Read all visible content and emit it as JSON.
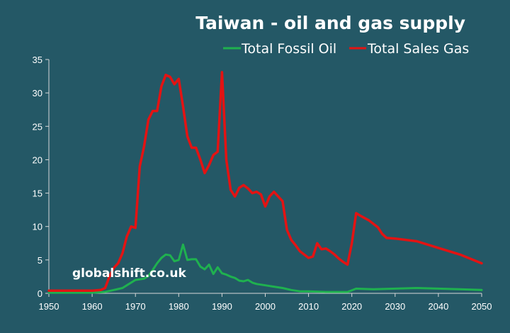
{
  "chart_data": {
    "type": "line",
    "title": "Taiwan - oil and gas supply",
    "watermark": "globalshift.co.uk",
    "xlim": [
      1950,
      2050
    ],
    "ylim": [
      0,
      35
    ],
    "x_ticks": [
      1950,
      1960,
      1970,
      1980,
      1990,
      2000,
      2010,
      2020,
      2030,
      2040,
      2050
    ],
    "y_ticks": [
      0,
      5,
      10,
      15,
      20,
      25,
      30,
      35
    ],
    "grid": false,
    "legend_position": "top-right",
    "background_color": "#245866",
    "series": [
      {
        "name": "Total Fossil Oil",
        "color": "#1fb14f",
        "points": [
          [
            1950,
            0.1
          ],
          [
            1955,
            0.1
          ],
          [
            1960,
            0.1
          ],
          [
            1963,
            0.2
          ],
          [
            1965,
            0.5
          ],
          [
            1967,
            0.8
          ],
          [
            1968,
            1.2
          ],
          [
            1970,
            2.0
          ],
          [
            1972,
            2.2
          ],
          [
            1973,
            2.6
          ],
          [
            1974,
            3.5
          ],
          [
            1975,
            4.5
          ],
          [
            1976,
            5.3
          ],
          [
            1977,
            5.8
          ],
          [
            1978,
            5.7
          ],
          [
            1979,
            4.8
          ],
          [
            1980,
            5.0
          ],
          [
            1981,
            7.3
          ],
          [
            1982,
            5.0
          ],
          [
            1983,
            5.1
          ],
          [
            1984,
            5.1
          ],
          [
            1985,
            4.0
          ],
          [
            1986,
            3.6
          ],
          [
            1987,
            4.3
          ],
          [
            1988,
            2.9
          ],
          [
            1989,
            3.9
          ],
          [
            1990,
            3.0
          ],
          [
            1991,
            2.8
          ],
          [
            1992,
            2.5
          ],
          [
            1993,
            2.3
          ],
          [
            1994,
            1.9
          ],
          [
            1995,
            1.8
          ],
          [
            1996,
            2.0
          ],
          [
            1997,
            1.6
          ],
          [
            1998,
            1.4
          ],
          [
            2000,
            1.2
          ],
          [
            2002,
            1.0
          ],
          [
            2004,
            0.8
          ],
          [
            2006,
            0.5
          ],
          [
            2008,
            0.3
          ],
          [
            2010,
            0.3
          ],
          [
            2014,
            0.2
          ],
          [
            2019,
            0.2
          ],
          [
            2021,
            0.7
          ],
          [
            2025,
            0.6
          ],
          [
            2030,
            0.7
          ],
          [
            2035,
            0.8
          ],
          [
            2040,
            0.7
          ],
          [
            2045,
            0.6
          ],
          [
            2050,
            0.5
          ]
        ]
      },
      {
        "name": "Total Sales Gas",
        "color": "#e31313",
        "points": [
          [
            1950,
            0.4
          ],
          [
            1955,
            0.4
          ],
          [
            1960,
            0.4
          ],
          [
            1962,
            0.5
          ],
          [
            1963,
            0.8
          ],
          [
            1964,
            2.5
          ],
          [
            1965,
            3.8
          ],
          [
            1966,
            4.5
          ],
          [
            1967,
            6.0
          ],
          [
            1968,
            8.5
          ],
          [
            1969,
            10.0
          ],
          [
            1970,
            9.8
          ],
          [
            1971,
            19.0
          ],
          [
            1972,
            22.0
          ],
          [
            1973,
            26.0
          ],
          [
            1974,
            27.3
          ],
          [
            1975,
            27.3
          ],
          [
            1976,
            31.0
          ],
          [
            1977,
            32.7
          ],
          [
            1978,
            32.4
          ],
          [
            1979,
            31.3
          ],
          [
            1980,
            32.1
          ],
          [
            1981,
            28.0
          ],
          [
            1982,
            23.5
          ],
          [
            1983,
            21.8
          ],
          [
            1984,
            21.8
          ],
          [
            1985,
            20.0
          ],
          [
            1986,
            18.0
          ],
          [
            1987,
            19.2
          ],
          [
            1988,
            20.7
          ],
          [
            1989,
            21.2
          ],
          [
            1990,
            33.1
          ],
          [
            1991,
            20.0
          ],
          [
            1992,
            15.5
          ],
          [
            1993,
            14.5
          ],
          [
            1994,
            15.8
          ],
          [
            1995,
            16.2
          ],
          [
            1996,
            15.7
          ],
          [
            1997,
            15.0
          ],
          [
            1998,
            15.2
          ],
          [
            1999,
            14.8
          ],
          [
            2000,
            13.0
          ],
          [
            2001,
            14.5
          ],
          [
            2002,
            15.2
          ],
          [
            2003,
            14.5
          ],
          [
            2004,
            13.8
          ],
          [
            2005,
            9.5
          ],
          [
            2006,
            8.0
          ],
          [
            2007,
            7.2
          ],
          [
            2008,
            6.3
          ],
          [
            2009,
            5.8
          ],
          [
            2010,
            5.3
          ],
          [
            2011,
            5.5
          ],
          [
            2012,
            7.5
          ],
          [
            2013,
            6.6
          ],
          [
            2014,
            6.7
          ],
          [
            2015,
            6.3
          ],
          [
            2016,
            5.8
          ],
          [
            2017,
            5.2
          ],
          [
            2018,
            4.7
          ],
          [
            2019,
            4.3
          ],
          [
            2020,
            7.5
          ],
          [
            2021,
            12.0
          ],
          [
            2022,
            11.6
          ],
          [
            2024,
            10.9
          ],
          [
            2026,
            9.9
          ],
          [
            2027,
            8.9
          ],
          [
            2028,
            8.3
          ],
          [
            2030,
            8.2
          ],
          [
            2035,
            7.8
          ],
          [
            2040,
            6.8
          ],
          [
            2045,
            5.8
          ],
          [
            2050,
            4.5
          ]
        ]
      }
    ]
  }
}
